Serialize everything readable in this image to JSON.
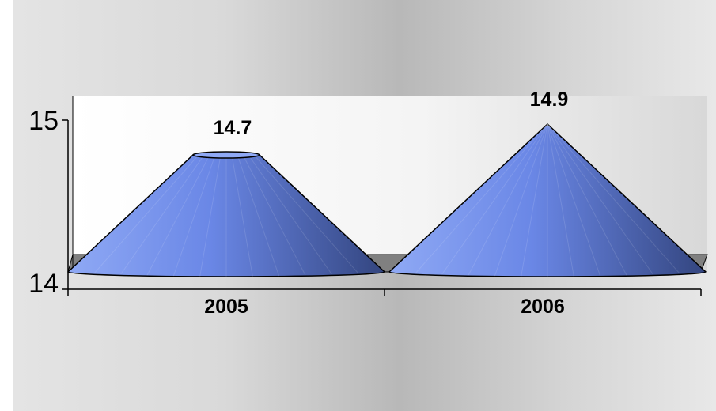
{
  "chart_data": {
    "type": "bar",
    "style": "3d-cone",
    "categories": [
      "2005",
      "2006"
    ],
    "values": [
      14.7,
      14.9
    ],
    "data_labels": [
      "14.7",
      "14.9"
    ],
    "ylim": [
      14,
      15
    ],
    "ytick_labels": [
      "14",
      "15"
    ],
    "grid": false,
    "legend": "none",
    "colors": {
      "cone_light": "#8fa9f5",
      "cone_mid": "#6a87e6",
      "cone_dark": "#33457f",
      "floor": "#808080",
      "wall": "#ffffff"
    }
  }
}
